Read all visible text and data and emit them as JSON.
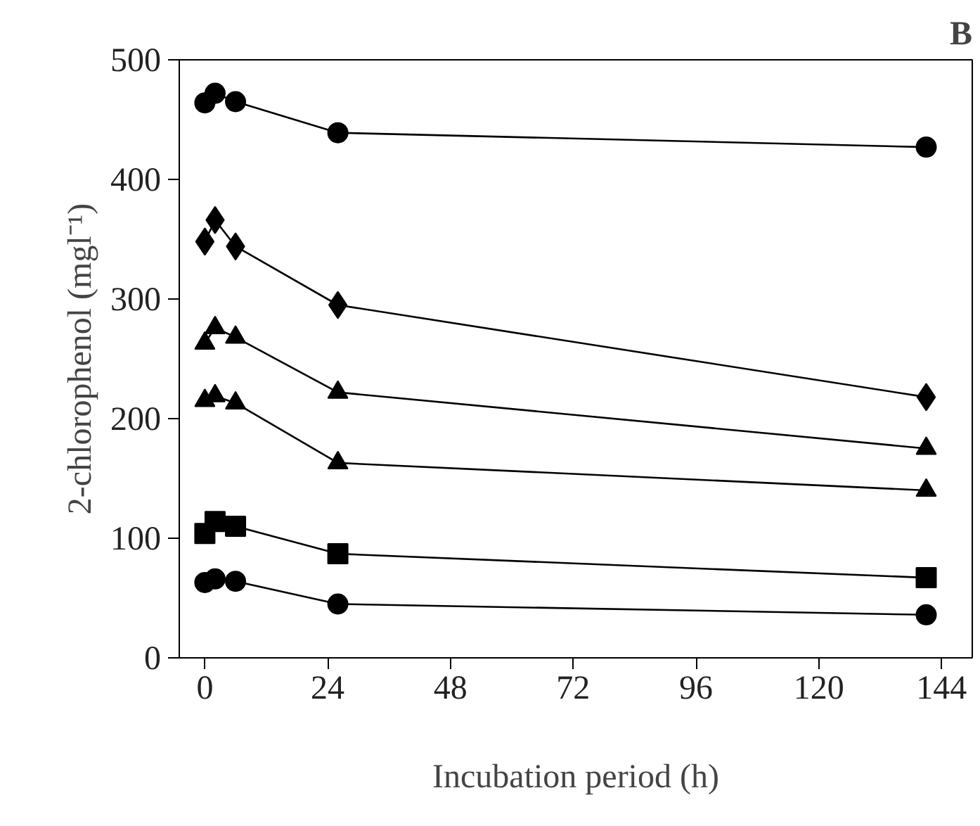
{
  "chart_data": {
    "type": "line",
    "xlabel": "Incubation period (h)",
    "ylabel": "2-chlorophenol (mgl⁻¹)",
    "annotations": [
      "B"
    ],
    "x": [
      0,
      2,
      6,
      26,
      141
    ],
    "series": [
      {
        "color": "#000000",
        "marker": "circle",
        "values": [
          464,
          472,
          465,
          439,
          427
        ]
      },
      {
        "color": "#000000",
        "marker": "diamond",
        "values": [
          348,
          366,
          344,
          295,
          218
        ]
      },
      {
        "color": "#000000",
        "marker": "triangle",
        "values": [
          263,
          276,
          268,
          222,
          175
        ]
      },
      {
        "color": "#000000",
        "marker": "triangle",
        "values": [
          215,
          219,
          213,
          163,
          140
        ]
      },
      {
        "color": "#000000",
        "marker": "square",
        "values": [
          104,
          114,
          110,
          87,
          67
        ]
      },
      {
        "color": "#000000",
        "marker": "circle",
        "values": [
          63,
          66,
          64,
          45,
          36
        ]
      }
    ],
    "xlim": [
      -5,
      150
    ],
    "ylim": [
      0,
      500
    ],
    "xticks": [
      0,
      24,
      48,
      72,
      96,
      120,
      144
    ],
    "yticks": [
      0,
      100,
      200,
      300,
      400,
      500
    ],
    "grid": false,
    "line_style": "solid"
  }
}
